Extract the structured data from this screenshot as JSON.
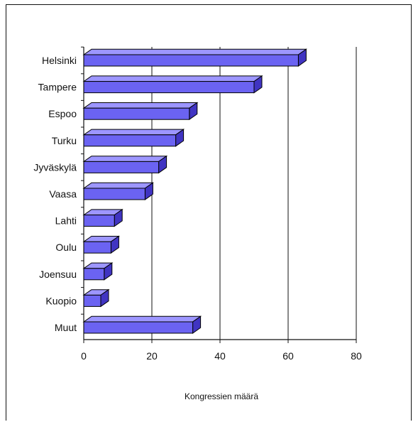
{
  "chart_data": {
    "type": "bar",
    "orientation": "horizontal",
    "style": "3d",
    "categories": [
      "Helsinki",
      "Tampere",
      "Espoo",
      "Turku",
      "Jyväskylä",
      "Vaasa",
      "Lahti",
      "Oulu",
      "Joensuu",
      "Kuopio",
      "Muut"
    ],
    "values": [
      63,
      50,
      31,
      27,
      22,
      18,
      9,
      8,
      6,
      5,
      32
    ],
    "xlabel": "Kongressien määrä",
    "xlim": [
      0,
      80
    ],
    "xticks": [
      0,
      20,
      40,
      60,
      80
    ],
    "grid": "vertical",
    "colors": {
      "bar_front": "#6b63f2",
      "bar_top": "#9d96ff",
      "bar_side": "#4034c2",
      "outline": "#000000"
    }
  }
}
